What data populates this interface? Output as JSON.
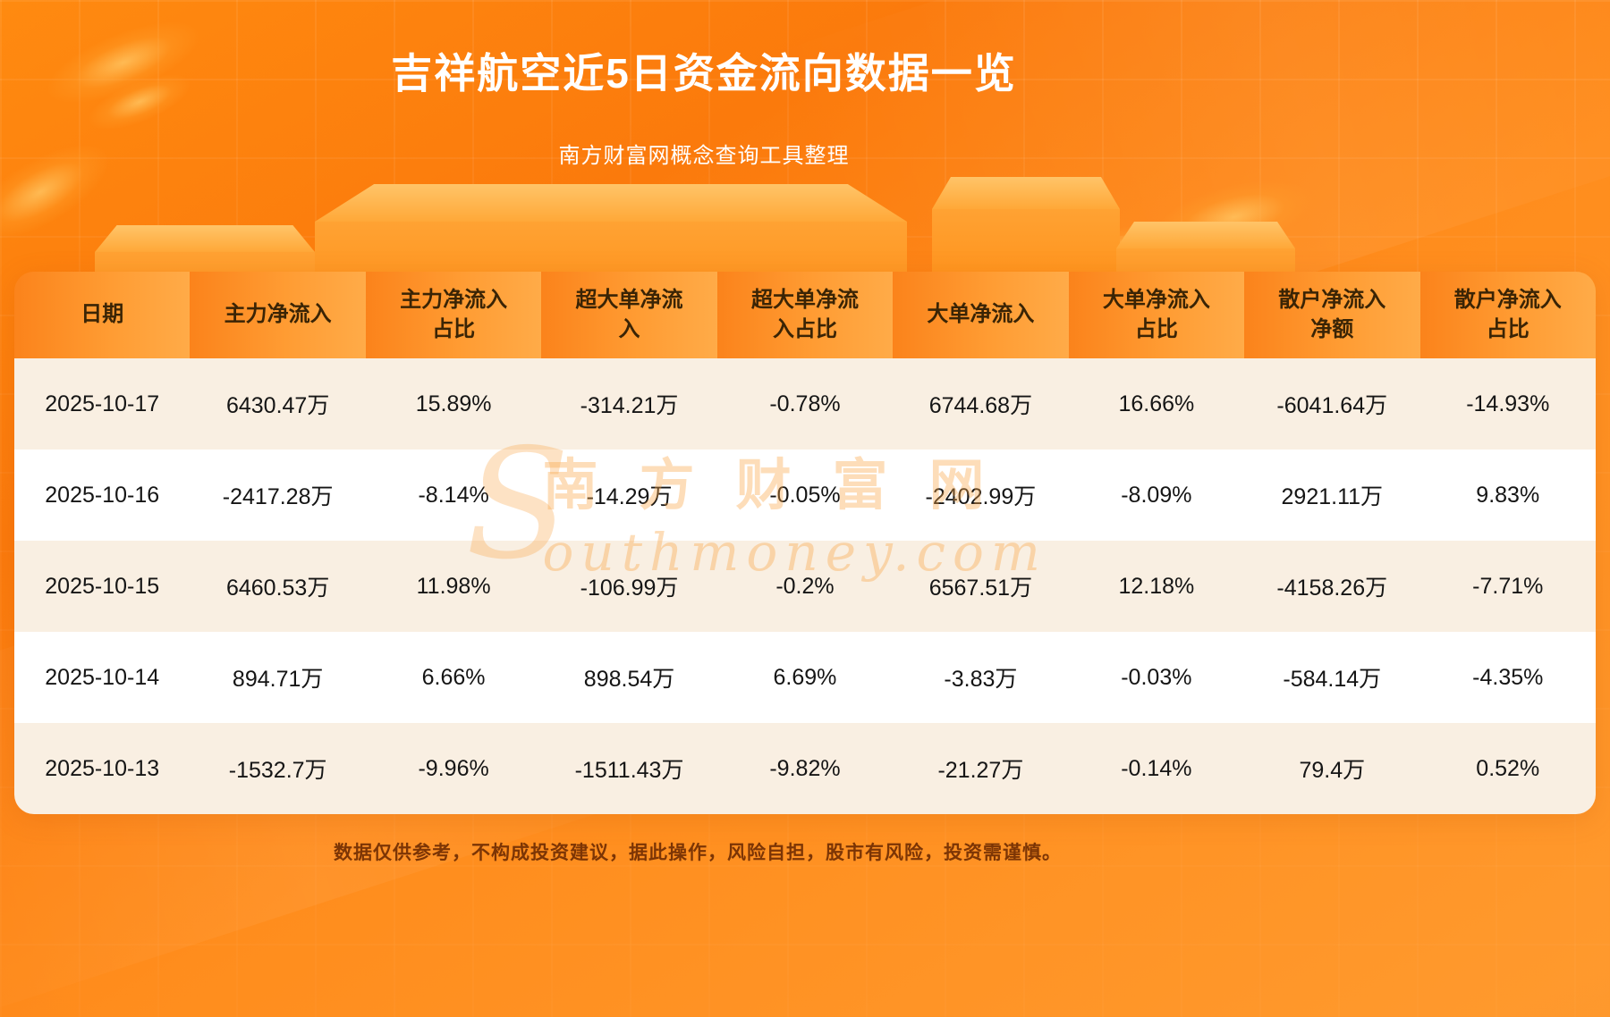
{
  "header": {
    "title": "吉祥航空近5日资金流向数据一览",
    "subtitle": "南方财富网概念查询工具整理"
  },
  "chart_data": {
    "type": "table",
    "title": "吉祥航空近5日资金流向数据一览",
    "columns": [
      "日期",
      "主力净流入",
      "主力净流入占比",
      "超大单净流入",
      "超大单净流入占比",
      "大单净流入",
      "大单净流入占比",
      "散户净流入净额",
      "散户净流入占比"
    ],
    "rows": [
      [
        "2025-10-17",
        "6430.47万",
        "15.89%",
        "-314.21万",
        "-0.78%",
        "6744.68万",
        "16.66%",
        "-6041.64万",
        "-14.93%"
      ],
      [
        "2025-10-16",
        "-2417.28万",
        "-8.14%",
        "-14.29万",
        "-0.05%",
        "-2402.99万",
        "-8.09%",
        "2921.11万",
        "9.83%"
      ],
      [
        "2025-10-15",
        "6460.53万",
        "11.98%",
        "-106.99万",
        "-0.2%",
        "6567.51万",
        "12.18%",
        "-4158.26万",
        "-7.71%"
      ],
      [
        "2025-10-14",
        "894.71万",
        "6.66%",
        "898.54万",
        "6.69%",
        "-3.83万",
        "-0.03%",
        "-584.14万",
        "-4.35%"
      ],
      [
        "2025-10-13",
        "-1532.7万",
        "-9.96%",
        "-1511.43万",
        "-9.82%",
        "-21.27万",
        "-0.14%",
        "79.4万",
        "0.52%"
      ]
    ]
  },
  "watermark": {
    "initial": "S",
    "chinese": "南方财富网",
    "latin": "outhmoney.com"
  },
  "footer": {
    "disclaimer": "数据仅供参考，不构成投资建议，据此操作，风险自担，股市有风险，投资需谨慎。"
  },
  "colors": {
    "background_orange": "#fb7a0c",
    "podium_orange": "#ffa838",
    "header_row_gradient_start": "#fb831b",
    "header_row_gradient_end": "#ffab48",
    "header_text": "#3a2405",
    "row_odd": "#f9efe2",
    "row_even": "#ffffff",
    "cell_text": "#151515",
    "title_text": "#ffffff",
    "disclaimer_text": "#7c3505",
    "watermark": "rgba(250,165,70,0.38)"
  }
}
